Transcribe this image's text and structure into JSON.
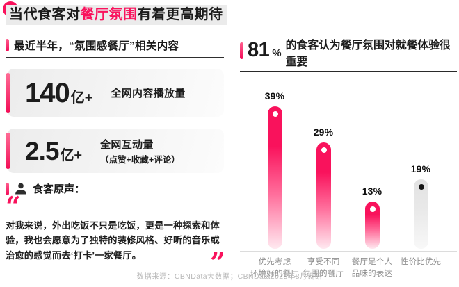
{
  "title": {
    "prefix": "当代食客对",
    "highlight": "餐厅氛围",
    "suffix": "有着更高期待"
  },
  "left_panel": {
    "header": "最近半年，“氛围感餐厅”相关内容",
    "stats": [
      {
        "value": "140",
        "unit": "亿+",
        "label": "全网内容播放量",
        "sublabel": ""
      },
      {
        "value": "2.5",
        "unit": "亿+",
        "label": "全网互动量",
        "sublabel": "（点赞+收藏+评论）"
      }
    ],
    "voice": {
      "header": "食客原声：",
      "open_quote": "“",
      "quote": "对我来说，外出吃饭不只是吃饭，更是一种探索和体验，我也会愿意为了独特的装修风格、好听的音乐或治愈的感觉而去‘打卡’一家餐厅。",
      "close_quote": "”"
    }
  },
  "right_panel": {
    "headline_number": "81",
    "headline_percent": "%",
    "headline_text": "的食客认为餐厅氛围对就餐体验很重要"
  },
  "chart_data": {
    "type": "bar",
    "title": "81%的食客认为餐厅氛围对就餐体验很重要",
    "categories": [
      "优先考虑 环境好的餐厅",
      "享受不同 氛围的餐厅",
      "餐厅是个人 品味的表达",
      "性价比优先"
    ],
    "category_lines": [
      [
        "优先考虑",
        "环境好的餐厅"
      ],
      [
        "享受不同",
        "氛围的餐厅"
      ],
      [
        "餐厅是个人",
        "品味的表达"
      ],
      [
        "性价比优先"
      ]
    ],
    "values": [
      39,
      29,
      13,
      19
    ],
    "unit": "%",
    "ylim": [
      0,
      45
    ],
    "grid": false,
    "legend": "none",
    "bar_style": [
      "accent",
      "accent",
      "accent",
      "neutral"
    ],
    "value_label_position": "above"
  },
  "footer": "数据来源：CBNData大数据；CBNData2025年8月调研",
  "colors": {
    "accent": "#F9125C",
    "bar_fade": "#FFE9F0",
    "neutral_bar": "#E6E6E6",
    "dot_on_accent": "#FFFFFF",
    "dot_on_neutral": "#161616",
    "title_band": "#EBEBEB",
    "text_gray": "#8F8F8F",
    "footer_gray": "#B9B9B9"
  }
}
